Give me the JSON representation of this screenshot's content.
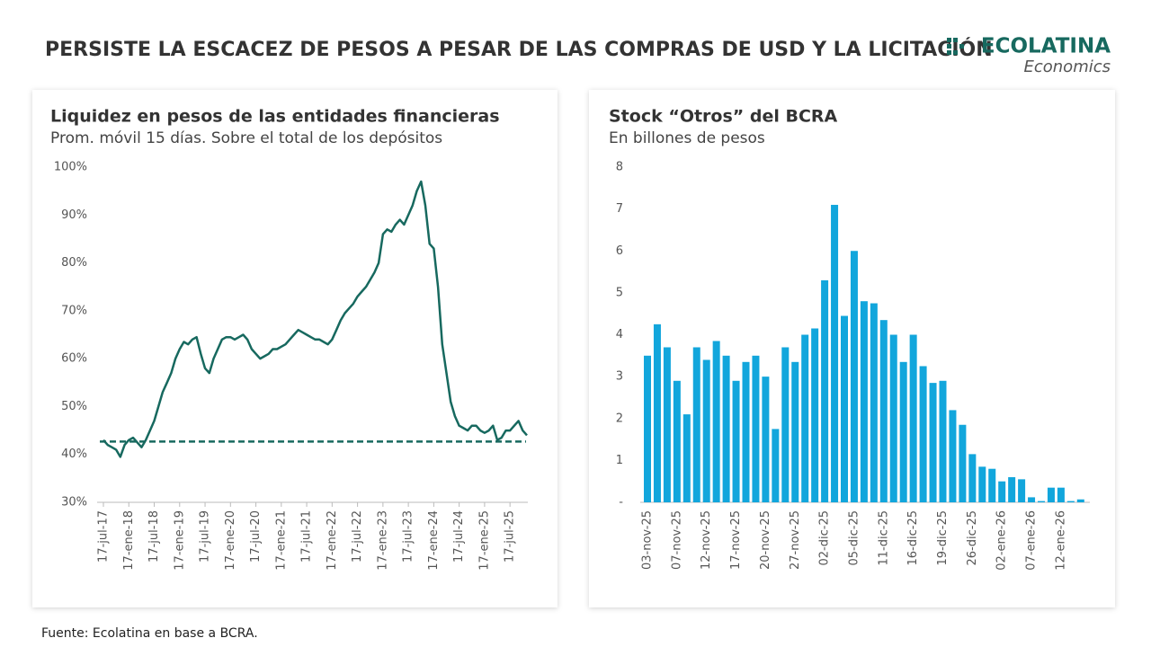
{
  "header": {
    "title": "PERSISTE LA ESCACEZ DE PESOS A PESAR DE LAS COMPRAS DE USD Y LA LICITACIÓN",
    "brand": "ECOLATINA",
    "brand_sub": "Economics"
  },
  "source": "Fuente: Ecolatina en base a BCRA.",
  "chart_data": [
    {
      "type": "line",
      "title": "Liquidez en pesos de las entidades financieras",
      "subtitle": "Prom. móvil 15 días. Sobre el total de los depósitos",
      "color": "#17695f",
      "categories": [
        "17-jul-17",
        null,
        null,
        null,
        null,
        null,
        "17-ene-18",
        null,
        null,
        null,
        null,
        null,
        "17-jul-18",
        null,
        null,
        null,
        null,
        null,
        "17-ene-19",
        null,
        null,
        null,
        null,
        null,
        "17-jul-19",
        null,
        null,
        null,
        null,
        null,
        "17-ene-20",
        null,
        null,
        null,
        null,
        null,
        "17-jul-20",
        null,
        null,
        null,
        null,
        null,
        "17-ene-21",
        null,
        null,
        null,
        null,
        null,
        "17-jul-21",
        null,
        null,
        null,
        null,
        null,
        "17-ene-22",
        null,
        null,
        null,
        null,
        null,
        "17-jul-22",
        null,
        null,
        null,
        null,
        null,
        "17-ene-23",
        null,
        null,
        null,
        null,
        null,
        "17-jul-23",
        null,
        null,
        null,
        null,
        null,
        "17-ene-24",
        null,
        null,
        null,
        null,
        null,
        "17-jul-24",
        null,
        null,
        null,
        null,
        null,
        "17-ene-25",
        null,
        null,
        null,
        null,
        null,
        "17-jul-25",
        null,
        null,
        null,
        null
      ],
      "values": [
        43,
        42,
        41.5,
        41,
        39.5,
        42,
        43,
        43.5,
        42.5,
        41.5,
        43,
        45,
        47,
        50,
        53,
        55,
        57,
        60,
        62,
        63.5,
        63,
        64,
        64.5,
        61,
        58,
        57,
        60,
        62,
        64,
        64.5,
        64.5,
        64,
        64.5,
        65,
        64,
        62,
        61,
        60,
        60.5,
        61,
        62,
        62,
        62.5,
        63,
        64,
        65,
        66,
        65.5,
        65,
        64.5,
        64,
        64,
        63.5,
        63,
        64,
        66,
        68,
        69.5,
        70.5,
        71.5,
        73,
        74,
        75,
        76.5,
        78,
        80,
        86,
        87,
        86.5,
        88,
        89,
        88,
        90,
        92,
        95,
        97,
        92,
        84,
        83,
        75,
        63,
        57,
        51,
        48,
        46,
        45.5,
        45,
        46,
        46,
        45,
        44.5,
        45,
        46,
        43,
        43.5,
        45,
        45,
        46,
        47,
        45,
        44
      ],
      "reference_line": 42.7,
      "ylim": [
        30,
        100
      ],
      "yticks": [
        {
          "value": 30,
          "label": "30%"
        },
        {
          "value": 40,
          "label": "40%"
        },
        {
          "value": 50,
          "label": "50%"
        },
        {
          "value": 60,
          "label": "60%"
        },
        {
          "value": 70,
          "label": "70%"
        },
        {
          "value": 80,
          "label": "80%"
        },
        {
          "value": 90,
          "label": "90%"
        },
        {
          "value": 100,
          "label": "100%"
        }
      ]
    },
    {
      "type": "bar",
      "title": "Stock “Otros” del BCRA",
      "subtitle": "En billones de pesos",
      "color": "#12a6dc",
      "categories": [
        "03-nov-25",
        null,
        null,
        "07-nov-25",
        null,
        null,
        "12-nov-25",
        null,
        null,
        "17-nov-25",
        null,
        null,
        "20-nov-25",
        null,
        null,
        "27-nov-25",
        null,
        null,
        "02-dic-25",
        null,
        null,
        "05-dic-25",
        null,
        null,
        "11-dic-25",
        null,
        null,
        "16-dic-25",
        null,
        null,
        "19-dic-25",
        null,
        null,
        "26-dic-25",
        null,
        null,
        "02-ene-26",
        null,
        null,
        "07-ene-26",
        null,
        null,
        "12-ene-26",
        null,
        null
      ],
      "values": [
        3.5,
        4.25,
        3.7,
        2.9,
        2.1,
        3.7,
        3.4,
        3.85,
        3.5,
        2.9,
        3.35,
        3.5,
        3.0,
        1.75,
        3.7,
        3.35,
        4.0,
        4.15,
        5.3,
        7.1,
        4.45,
        6.0,
        4.8,
        4.75,
        4.35,
        4.0,
        3.35,
        4.0,
        3.25,
        2.85,
        2.9,
        2.2,
        1.85,
        1.15,
        0.85,
        0.8,
        0.5,
        0.6,
        0.55,
        0.12,
        0.03,
        0.35,
        0.35,
        0.03,
        0.07
      ],
      "ylim": [
        0,
        8
      ],
      "yticks": [
        {
          "value": 0,
          "label": "-"
        },
        1,
        2,
        3,
        4,
        5,
        6,
        7,
        8
      ]
    }
  ]
}
